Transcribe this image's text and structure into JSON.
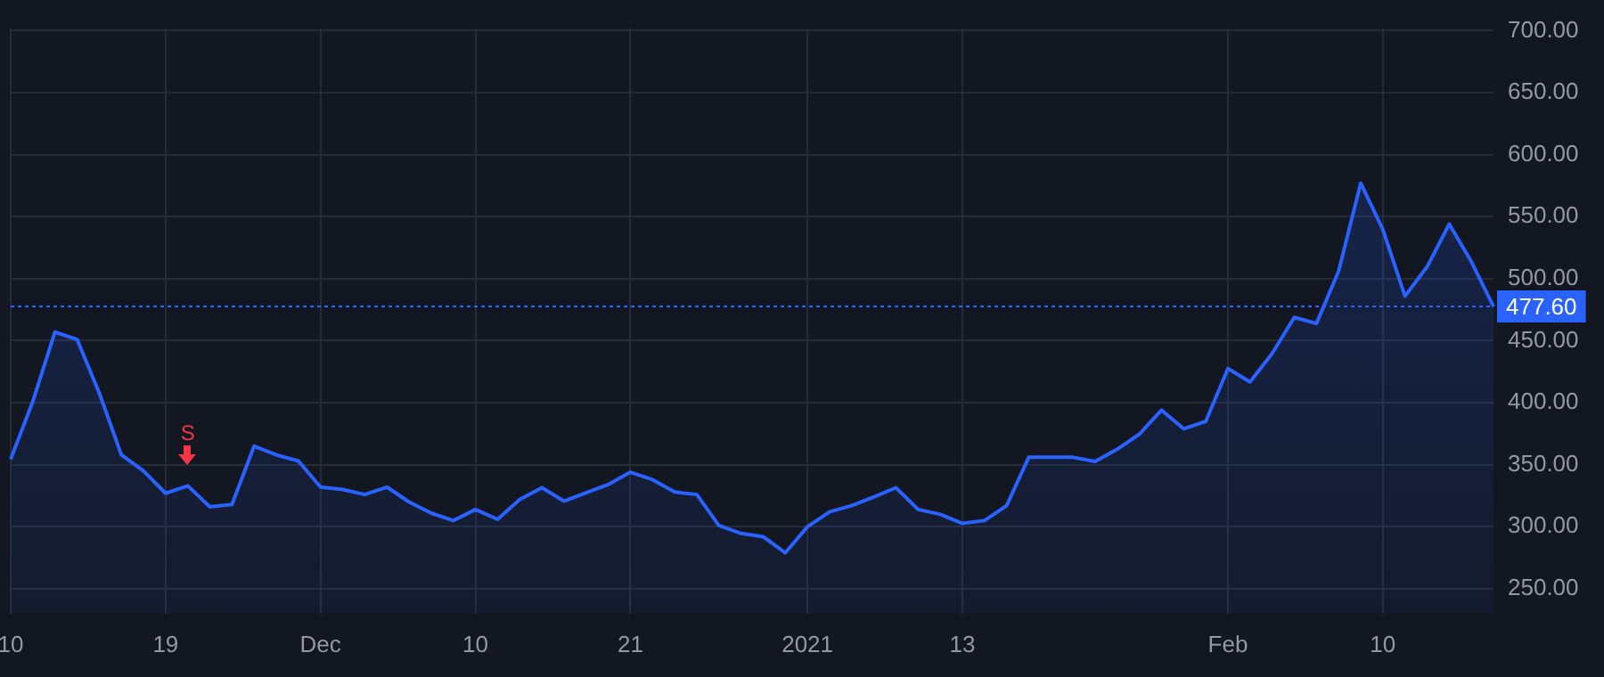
{
  "chart_data": {
    "type": "area",
    "categories": [
      "10",
      null,
      null,
      null,
      null,
      null,
      null,
      "19",
      null,
      null,
      null,
      null,
      null,
      null,
      "Dec",
      null,
      null,
      null,
      null,
      null,
      null,
      "10",
      null,
      null,
      null,
      null,
      null,
      null,
      "21",
      null,
      null,
      null,
      null,
      null,
      null,
      null,
      "2021",
      null,
      null,
      null,
      null,
      null,
      null,
      "13",
      null,
      null,
      null,
      null,
      null,
      null,
      null,
      null,
      null,
      null,
      null,
      "Feb",
      null,
      null,
      null,
      null,
      null,
      null,
      "10",
      null,
      null,
      null,
      null,
      null
    ],
    "series": [
      {
        "color": "#2962ff",
        "values": [
          354.5,
          401,
          457,
          451,
          408,
          358,
          345,
          327,
          333,
          316,
          318,
          365,
          358,
          353,
          332,
          330,
          326,
          332,
          320,
          311,
          305,
          314,
          306,
          322,
          331.5,
          320.7,
          327.5,
          334,
          344,
          338,
          328,
          326,
          301,
          294.6,
          292,
          279,
          300,
          312,
          317,
          324,
          331.5,
          314,
          310,
          302.7,
          305,
          317,
          356,
          356,
          356,
          352.7,
          362.5,
          374.7,
          394,
          379,
          385,
          427.6,
          416.8,
          439.7,
          468.8,
          463.9,
          506,
          577,
          539.7,
          486,
          509.6,
          544,
          513.7,
          477.6
        ]
      }
    ],
    "ylim": [
      230,
      702
    ],
    "yticks": [
      {
        "value": 250,
        "label": "250.00"
      },
      {
        "value": 300,
        "label": "300.00"
      },
      {
        "value": 350,
        "label": "350.00"
      },
      {
        "value": 400,
        "label": "400.00"
      },
      {
        "value": 450,
        "label": "450.00"
      },
      {
        "value": 500,
        "label": "500.00"
      },
      {
        "value": 550,
        "label": "550.00"
      },
      {
        "value": 600,
        "label": "600.00"
      },
      {
        "value": 650,
        "label": "650.00"
      },
      {
        "value": 700,
        "label": "700.00"
      }
    ],
    "ref_lines": [
      {
        "axis": "y",
        "value": 477.6,
        "label": "477.60",
        "color": "#2962ff",
        "line_style": "dotted"
      }
    ],
    "annotations": [
      "S"
    ],
    "grid": true,
    "legend": false,
    "marker": "none",
    "line_style": "solid"
  }
}
